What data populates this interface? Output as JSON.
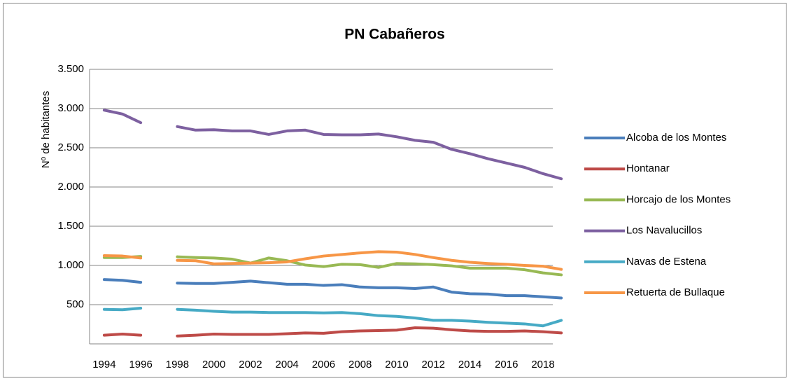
{
  "chart_data": {
    "type": "line",
    "title": "PN Cabañeros",
    "y_label": "Nº de habitantes",
    "x": [
      1994,
      1995,
      1996,
      1997,
      1998,
      1999,
      2000,
      2001,
      2002,
      2003,
      2004,
      2005,
      2006,
      2007,
      2008,
      2009,
      2010,
      2011,
      2012,
      2013,
      2014,
      2015,
      2016,
      2017,
      2018,
      2019
    ],
    "xlim": [
      1993.2,
      2019.3
    ],
    "xticks": [
      1994,
      1996,
      1998,
      2000,
      2002,
      2004,
      2006,
      2008,
      2010,
      2012,
      2014,
      2016,
      2018
    ],
    "ylim": [
      0,
      3500
    ],
    "yticks": [
      500,
      {
        "value": 1000,
        "label": "1.000"
      },
      {
        "value": 1500,
        "label": "1.500"
      },
      {
        "value": 2000,
        "label": "2.000"
      },
      {
        "value": 2500,
        "label": "2.500"
      },
      {
        "value": 3000,
        "label": "3.000"
      },
      {
        "value": 3500,
        "label": "3.500"
      }
    ],
    "grid": true,
    "legend": "right",
    "series": [
      {
        "name": "Alcoba de los Montes",
        "color": "#4a7ebb",
        "values": [
          820,
          810,
          785,
          null,
          775,
          770,
          770,
          785,
          800,
          780,
          760,
          760,
          745,
          755,
          725,
          715,
          715,
          705,
          725,
          660,
          640,
          635,
          615,
          615,
          600,
          585
        ]
      },
      {
        "name": "Hontanar",
        "color": "#be4b48",
        "values": [
          110,
          125,
          110,
          null,
          100,
          110,
          125,
          120,
          120,
          120,
          130,
          140,
          135,
          155,
          165,
          170,
          175,
          205,
          200,
          180,
          165,
          160,
          160,
          165,
          155,
          140
        ]
      },
      {
        "name": "Horcajo de los Montes",
        "color": "#98b954",
        "values": [
          1100,
          1100,
          1115,
          null,
          1110,
          1100,
          1095,
          1080,
          1030,
          1095,
          1060,
          1005,
          985,
          1015,
          1010,
          975,
          1025,
          1020,
          1010,
          995,
          965,
          965,
          965,
          945,
          905,
          880
        ]
      },
      {
        "name": "Los Navalucillos",
        "color": "#7d60a0",
        "values": [
          2980,
          2930,
          2820,
          null,
          2770,
          2725,
          2730,
          2715,
          2715,
          2670,
          2715,
          2725,
          2670,
          2665,
          2665,
          2675,
          2640,
          2595,
          2570,
          2480,
          2425,
          2360,
          2305,
          2250,
          2170,
          2105
        ]
      },
      {
        "name": "Navas de Estena",
        "color": "#46aac5",
        "values": [
          440,
          435,
          455,
          null,
          440,
          430,
          415,
          405,
          405,
          400,
          400,
          400,
          395,
          400,
          385,
          360,
          350,
          330,
          300,
          300,
          290,
          275,
          265,
          255,
          230,
          300
        ]
      },
      {
        "name": "Retuerta de Bullaque",
        "color": "#f79646",
        "values": [
          1125,
          1120,
          1095,
          null,
          1065,
          1060,
          1020,
          1025,
          1030,
          1035,
          1045,
          1085,
          1120,
          1140,
          1160,
          1175,
          1170,
          1140,
          1100,
          1065,
          1040,
          1025,
          1015,
          1000,
          990,
          950
        ]
      }
    ]
  }
}
